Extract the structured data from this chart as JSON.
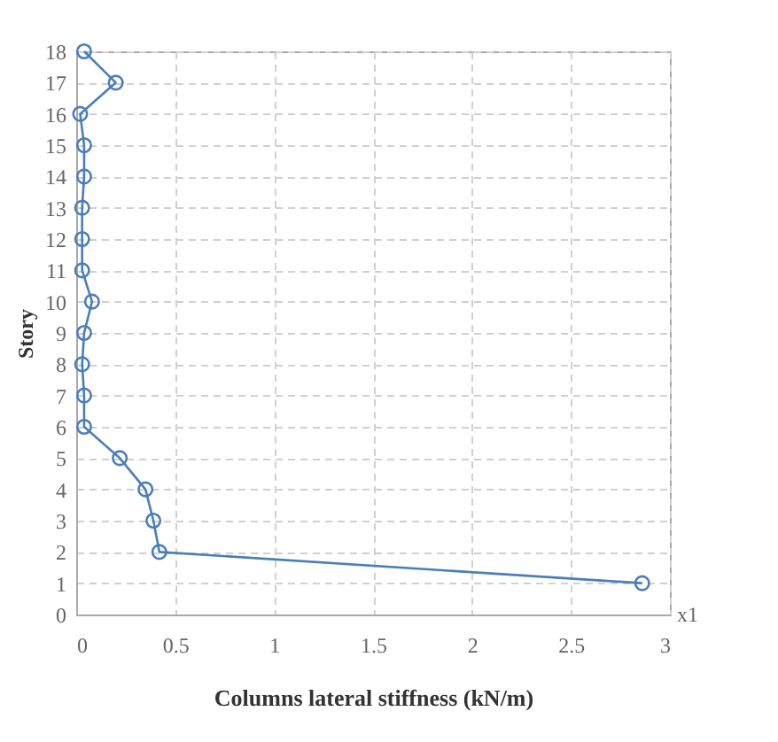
{
  "chart_data": {
    "type": "line",
    "xlabel": "Columns lateral stiffness (kN/m)",
    "ylabel": "Story",
    "x": [
      0.04,
      0.2,
      0.02,
      0.04,
      0.04,
      0.03,
      0.03,
      0.03,
      0.08,
      0.04,
      0.03,
      0.04,
      0.04,
      0.22,
      0.35,
      0.39,
      0.42,
      2.86
    ],
    "values": [
      18,
      17,
      16,
      15,
      14,
      13,
      12,
      11,
      10,
      9,
      8,
      7,
      6,
      5,
      4,
      3,
      2,
      1
    ],
    "color": "#4a7ebb",
    "xlim": [
      0,
      3
    ],
    "xticks": [
      0,
      0.5,
      1,
      1.5,
      2,
      2.5,
      3
    ],
    "ylim": [
      0,
      18
    ],
    "yticks": [
      0,
      1,
      2,
      3,
      4,
      5,
      6,
      7,
      8,
      9,
      10,
      11,
      12,
      13,
      14,
      15,
      16,
      17,
      18
    ],
    "grid": true,
    "marker": "circle",
    "line_style": "solid",
    "annotations": [
      "x1"
    ]
  }
}
